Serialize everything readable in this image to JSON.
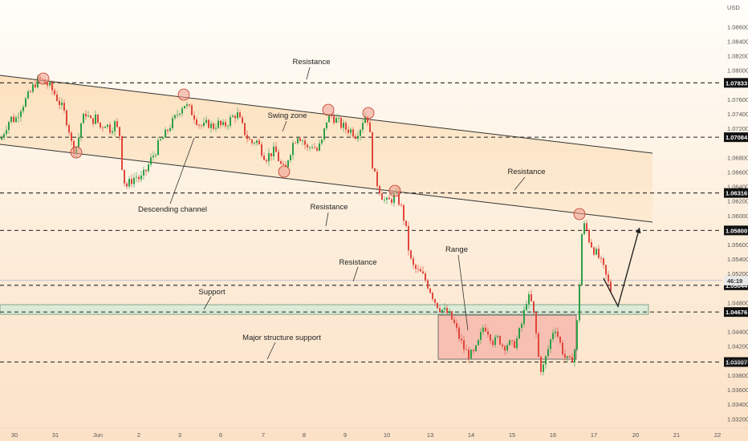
{
  "chart_data": {
    "type": "candlestick",
    "currency": "USD",
    "ylim": [
      1.0312,
      1.0893
    ],
    "y_ticks": [
      "1.08600",
      "1.08400",
      "1.08200",
      "1.08000",
      "1.07600",
      "1.07400",
      "1.07200",
      "1.06800",
      "1.06600",
      "1.06400",
      "1.06200",
      "1.06000",
      "1.05600",
      "1.05400",
      "1.05200",
      "1.04800",
      "1.04400",
      "1.04200",
      "1.04000",
      "1.03800",
      "1.03600",
      "1.03400",
      "1.03200"
    ],
    "x_ticks": [
      "30",
      "31",
      "Jun",
      "2",
      "3",
      "6",
      "7",
      "8",
      "9",
      "10",
      "13",
      "14",
      "15",
      "16",
      "17",
      "20",
      "21",
      "22"
    ],
    "levels": [
      {
        "price": 1.07833,
        "label": "1.07833"
      },
      {
        "price": 1.07084,
        "label": "1.07084"
      },
      {
        "price": 1.06316,
        "label": "1.06316"
      },
      {
        "price": 1.058,
        "label": "1.05800"
      },
      {
        "price": 1.05044,
        "label": "1.05044"
      },
      {
        "price": 1.04676,
        "label": "1.04676"
      },
      {
        "price": 1.03987,
        "label": "1.03987"
      }
    ],
    "current_price": {
      "label": "46:19",
      "price": 1.0511
    },
    "annotations": [
      "Resistance",
      "Swing zone",
      "Descending channel",
      "Resistance",
      "Resistance",
      "Range",
      "Resistance",
      "Support",
      "Major structure support"
    ],
    "price_path": [
      [
        0,
        1.0705
      ],
      [
        6,
        1.0722
      ],
      [
        12,
        1.0735
      ],
      [
        18,
        1.0732
      ],
      [
        24,
        1.0748
      ],
      [
        30,
        1.0758
      ],
      [
        36,
        1.0768
      ],
      [
        42,
        1.0782
      ],
      [
        48,
        1.0788
      ],
      [
        54,
        1.0785
      ],
      [
        60,
        1.0779
      ],
      [
        66,
        1.077
      ],
      [
        72,
        1.0758
      ],
      [
        78,
        1.0745
      ],
      [
        84,
        1.0725
      ],
      [
        88,
        1.07
      ],
      [
        92,
        1.069
      ],
      [
        96,
        1.0702
      ],
      [
        100,
        1.0728
      ],
      [
        106,
        1.0742
      ],
      [
        112,
        1.073
      ],
      [
        118,
        1.0735
      ],
      [
        124,
        1.0722
      ],
      [
        130,
        1.0728
      ],
      [
        136,
        1.072
      ],
      [
        142,
        1.0727
      ],
      [
        148,
        1.0712
      ],
      [
        152,
        1.0655
      ],
      [
        156,
        1.064
      ],
      [
        162,
        1.0648
      ],
      [
        168,
        1.0655
      ],
      [
        174,
        1.065
      ],
      [
        180,
        1.066
      ],
      [
        186,
        1.0675
      ],
      [
        192,
        1.0688
      ],
      [
        198,
        1.0702
      ],
      [
        204,
        1.071
      ],
      [
        210,
        1.0723
      ],
      [
        216,
        1.0732
      ],
      [
        222,
        1.0745
      ],
      [
        228,
        1.0755
      ],
      [
        234,
        1.0748
      ],
      [
        240,
        1.074
      ],
      [
        246,
        1.0728
      ],
      [
        252,
        1.0722
      ],
      [
        258,
        1.0728
      ],
      [
        264,
        1.0722
      ],
      [
        270,
        1.0728
      ],
      [
        276,
        1.0722
      ],
      [
        282,
        1.0728
      ],
      [
        288,
        1.0735
      ],
      [
        294,
        1.0742
      ],
      [
        300,
        1.0725
      ],
      [
        306,
        1.071
      ],
      [
        312,
        1.07
      ],
      [
        318,
        1.0705
      ],
      [
        324,
        1.0692
      ],
      [
        330,
        1.068
      ],
      [
        336,
        1.0686
      ],
      [
        342,
        1.069
      ],
      [
        348,
        1.0672
      ],
      [
        354,
        1.066
      ],
      [
        358,
        1.068
      ],
      [
        364,
        1.07
      ],
      [
        370,
        1.0712
      ],
      [
        376,
        1.0705
      ],
      [
        382,
        1.0692
      ],
      [
        388,
        1.0698
      ],
      [
        394,
        1.069
      ],
      [
        400,
        1.0702
      ],
      [
        406,
        1.0732
      ],
      [
        412,
        1.0738
      ],
      [
        418,
        1.0732
      ],
      [
        424,
        1.0725
      ],
      [
        430,
        1.072
      ],
      [
        436,
        1.0718
      ],
      [
        442,
        1.0712
      ],
      [
        448,
        1.0722
      ],
      [
        452,
        1.0735
      ],
      [
        456,
        1.0742
      ],
      [
        460,
        1.071
      ],
      [
        464,
        1.066
      ],
      [
        470,
        1.0642
      ],
      [
        476,
        1.0625
      ],
      [
        480,
        1.0618
      ],
      [
        486,
        1.0622
      ],
      [
        492,
        1.063
      ],
      [
        498,
        1.0615
      ],
      [
        504,
        1.0588
      ],
      [
        508,
        1.0555
      ],
      [
        512,
        1.0532
      ],
      [
        518,
        1.0525
      ],
      [
        524,
        1.052
      ],
      [
        530,
        1.051
      ],
      [
        536,
        1.0495
      ],
      [
        542,
        1.048
      ],
      [
        548,
        1.0472
      ],
      [
        554,
        1.0468
      ],
      [
        560,
        1.0462
      ],
      [
        566,
        1.0448
      ],
      [
        572,
        1.043
      ],
      [
        578,
        1.0415
      ],
      [
        584,
        1.0408
      ],
      [
        590,
        1.041
      ],
      [
        596,
        1.0428
      ],
      [
        602,
        1.045
      ],
      [
        608,
        1.044
      ],
      [
        614,
        1.0425
      ],
      [
        620,
        1.0432
      ],
      [
        626,
        1.042
      ],
      [
        632,
        1.0425
      ],
      [
        638,
        1.042
      ],
      [
        644,
        1.0432
      ],
      [
        650,
        1.0455
      ],
      [
        656,
        1.049
      ],
      [
        662,
        1.0478
      ],
      [
        666,
        1.0448
      ],
      [
        670,
        1.0405
      ],
      [
        674,
        1.0385
      ],
      [
        678,
        1.04
      ],
      [
        684,
        1.0425
      ],
      [
        690,
        1.045
      ],
      [
        694,
        1.0435
      ],
      [
        698,
        1.042
      ],
      [
        704,
        1.0402
      ],
      [
        710,
        1.0398
      ],
      [
        716,
        1.042
      ],
      [
        720,
        1.0485
      ],
      [
        724,
        1.0575
      ],
      [
        728,
        1.059
      ],
      [
        732,
        1.057
      ],
      [
        738,
        1.0555
      ],
      [
        744,
        1.0545
      ],
      [
        750,
        1.053
      ],
      [
        756,
        1.051
      ],
      [
        762,
        1.0492
      ]
    ]
  }
}
